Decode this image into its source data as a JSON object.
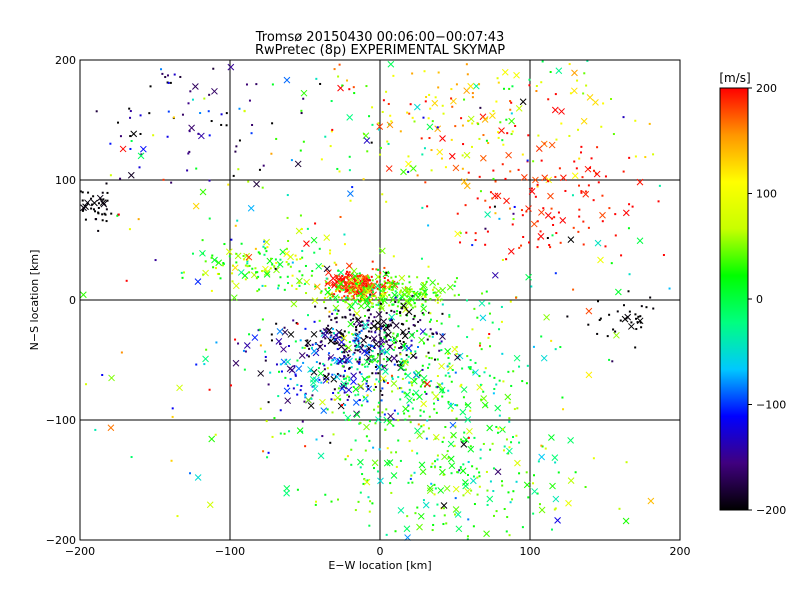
{
  "chart_data": {
    "type": "scatter",
    "title": "Tromsø 20150430 00:06:00−00:07:43",
    "subtitle": "RwPretec (8p) EXPERIMENTAL SKYMAP",
    "xlabel": "E−W location [km]",
    "ylabel": "N−S location [km]",
    "xlim": [
      -200,
      200
    ],
    "ylim": [
      -200,
      200
    ],
    "xticks": [
      -200,
      -100,
      0,
      100,
      200
    ],
    "yticks": [
      -200,
      -100,
      0,
      100,
      200
    ],
    "xtick_labels": [
      "−200",
      "−100",
      "0",
      "100",
      "200"
    ],
    "ytick_labels": [
      "−200",
      "−100",
      "0",
      "100",
      "200"
    ],
    "grid": true,
    "markers": [
      "small-dot",
      "cross"
    ],
    "colorbar": {
      "label": "[m/s]",
      "min": -200,
      "max": 200,
      "ticks": [
        200,
        100,
        0,
        -100,
        -200
      ],
      "tick_labels": [
        "200",
        "100",
        "0",
        "−100",
        "−200"
      ],
      "colormap": [
        "#000000",
        "#40007f",
        "#0000ff",
        "#00c8ff",
        "#00ff80",
        "#00ff00",
        "#c8ff00",
        "#ffff00",
        "#ff9600",
        "#ff0000"
      ]
    },
    "clusters": [
      {
        "x": -15,
        "y": 12,
        "sx": 10,
        "sy": 6,
        "v_mean": 185,
        "v_spread": 20,
        "count": 220
      },
      {
        "x": 5,
        "y": 5,
        "sx": 22,
        "sy": 8,
        "v_mean": 40,
        "v_spread": 25,
        "count": 260
      },
      {
        "x": -5,
        "y": -30,
        "sx": 20,
        "sy": 14,
        "v_mean": -185,
        "v_spread": 20,
        "count": 200
      },
      {
        "x": -25,
        "y": -50,
        "sx": 28,
        "sy": 20,
        "v_mean": -120,
        "v_spread": 60,
        "count": 260
      },
      {
        "x": 25,
        "y": -70,
        "sx": 35,
        "sy": 30,
        "v_mean": 10,
        "v_spread": 40,
        "count": 300
      },
      {
        "x": 50,
        "y": -150,
        "sx": 50,
        "sy": 30,
        "v_mean": 20,
        "v_spread": 40,
        "count": 220
      },
      {
        "x": 60,
        "y": 150,
        "sx": 55,
        "sy": 30,
        "v_mean": 110,
        "v_spread": 70,
        "count": 200
      },
      {
        "x": 110,
        "y": 80,
        "sx": 30,
        "sy": 25,
        "v_mean": 195,
        "v_spread": 10,
        "count": 110
      },
      {
        "x": -80,
        "y": 30,
        "sx": 25,
        "sy": 12,
        "v_mean": 40,
        "v_spread": 40,
        "count": 120
      },
      {
        "x": -190,
        "y": 78,
        "sx": 6,
        "sy": 8,
        "v_mean": -200,
        "v_spread": 3,
        "count": 45
      },
      {
        "x": 165,
        "y": -15,
        "sx": 15,
        "sy": 10,
        "v_mean": -200,
        "v_spread": 3,
        "count": 35
      },
      {
        "x": -130,
        "y": 150,
        "sx": 40,
        "sy": 30,
        "v_mean": -170,
        "v_spread": 40,
        "count": 80
      },
      {
        "x": 0,
        "y": 0,
        "sx": 120,
        "sy": 120,
        "v_mean": 0,
        "v_spread": 130,
        "count": 350
      }
    ]
  }
}
